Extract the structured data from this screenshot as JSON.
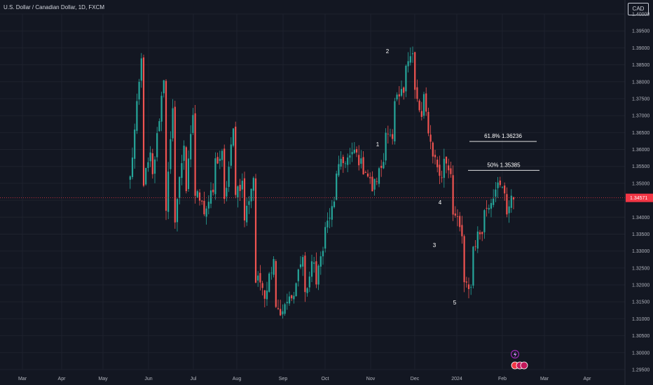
{
  "header": {
    "title": "U.S. Dollar / Canadian Dollar, 1D, FXCM",
    "currency_button": "CAD"
  },
  "colors": {
    "background": "#131722",
    "up": "#26a69a",
    "down": "#ef5350",
    "grid": "#1e222d",
    "text": "#b2b5be",
    "price_tag": "#f23645",
    "event_icon": "#9c27b0"
  },
  "icons": {
    "event_flash": "lightning-icon",
    "earnings_markers": "circle-marker-icon"
  },
  "chart_data": {
    "type": "candlestick",
    "ylim": [
      1.295,
      1.4
    ],
    "y_ticks": [
      "1.40000",
      "1.39500",
      "1.39000",
      "1.38500",
      "1.38000",
      "1.37500",
      "1.37000",
      "1.36500",
      "1.36000",
      "1.35500",
      "1.35000",
      "1.34500",
      "1.34000",
      "1.33500",
      "1.33000",
      "1.32500",
      "1.32000",
      "1.31500",
      "1.31000",
      "1.30500",
      "1.30000",
      "1.29500"
    ],
    "x_ticks": [
      "Mar",
      "Apr",
      "May",
      "Jun",
      "Jul",
      "Aug",
      "Sep",
      "Oct",
      "Nov",
      "Dec",
      "2024",
      "Feb",
      "Mar",
      "Apr"
    ],
    "last_price": "1.34571",
    "last_price_value": 1.34571,
    "wave_labels": [
      {
        "label": "1",
        "date_index": 168,
        "price": 1.3615
      },
      {
        "label": "2",
        "date_index": 173,
        "price": 1.3905
      },
      {
        "label": "3",
        "date_index": 205,
        "price": 1.3345
      },
      {
        "label": "4",
        "date_index": 208,
        "price": 1.3445
      },
      {
        "label": "5",
        "date_index": 215,
        "price": 1.3155
      }
    ],
    "fib_levels": [
      {
        "label": "61.8%  1.36236",
        "price": 1.36236
      },
      {
        "label": "50%  1.35385",
        "price": 1.35385
      }
    ],
    "trend_path": [
      [
        1.3445,
        1.3862,
        6
      ],
      [
        1.3482,
        1.3578,
        4
      ],
      [
        1.3458,
        1.3815,
        6
      ],
      [
        1.3338,
        1.3708,
        4
      ],
      [
        1.3345,
        1.362,
        5
      ],
      [
        1.3408,
        1.3705,
        4
      ],
      [
        1.3468,
        1.346,
        4
      ],
      [
        1.3401,
        1.3475,
        5
      ],
      [
        1.3558,
        1.3581,
        4
      ],
      [
        1.3388,
        1.3654,
        5
      ],
      [
        1.3475,
        1.35,
        4
      ],
      [
        1.3363,
        1.352,
        5
      ],
      [
        1.321,
        1.321,
        4
      ],
      [
        1.314,
        1.3285,
        5
      ],
      [
        1.3155,
        1.311,
        4
      ],
      [
        1.314,
        1.316,
        5
      ],
      [
        1.3205,
        1.3282,
        4
      ],
      [
        1.3146,
        1.3278,
        5
      ],
      [
        1.3161,
        1.332,
        4
      ],
      [
        1.3347,
        1.3439,
        5
      ],
      [
        1.353,
        1.356,
        4
      ],
      [
        1.3569,
        1.3578,
        4
      ],
      [
        1.361,
        1.3543,
        5
      ],
      [
        1.356,
        1.3484,
        4
      ],
      [
        1.3482,
        1.3566,
        5
      ],
      [
        1.3686,
        1.3618,
        4
      ],
      [
        1.372,
        1.3775,
        5
      ],
      [
        1.3863,
        1.3878,
        4
      ],
      [
        1.3795,
        1.369,
        4
      ],
      [
        1.3789,
        1.362,
        4
      ],
      [
        1.3611,
        1.3509,
        5
      ],
      [
        1.3593,
        1.3534,
        4
      ],
      [
        1.3443,
        1.3343,
        5
      ],
      [
        1.3195,
        1.3195,
        4
      ],
      [
        1.33,
        1.337,
        5
      ],
      [
        1.3403,
        1.347,
        5
      ],
      [
        1.3502,
        1.3476,
        5
      ],
      [
        1.3406,
        1.346,
        4
      ]
    ]
  }
}
